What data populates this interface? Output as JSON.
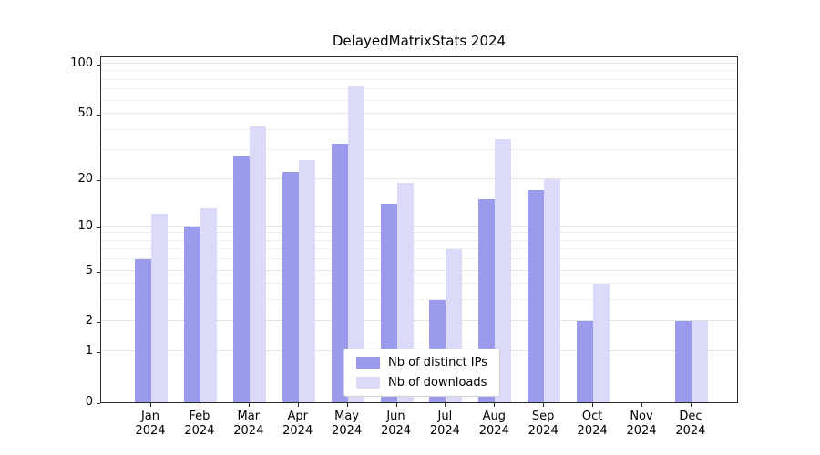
{
  "title": "DelayedMatrixStats 2024",
  "chart_data": {
    "type": "bar",
    "title": "DelayedMatrixStats 2024",
    "categories": [
      "Jan",
      "Feb",
      "Mar",
      "Apr",
      "May",
      "Jun",
      "Jul",
      "Aug",
      "Sep",
      "Oct",
      "Nov",
      "Dec"
    ],
    "year_label": "2024",
    "series": [
      {
        "name": "Nb of distinct IPs",
        "color": "#9b9bee",
        "values": [
          6,
          10,
          28,
          22,
          33,
          14,
          3,
          15,
          17,
          2,
          0,
          2
        ]
      },
      {
        "name": "Nb of downloads",
        "color": "#dbdbf9",
        "values": [
          12,
          13,
          42,
          26,
          73,
          19,
          7,
          35,
          20,
          4,
          0,
          2
        ]
      }
    ],
    "yticks": [
      0,
      1,
      2,
      5,
      10,
      20,
      50,
      100
    ],
    "scale": "log1p",
    "ylim": [
      0,
      112
    ],
    "grid": true,
    "legend_position": "lower-center-inside"
  }
}
